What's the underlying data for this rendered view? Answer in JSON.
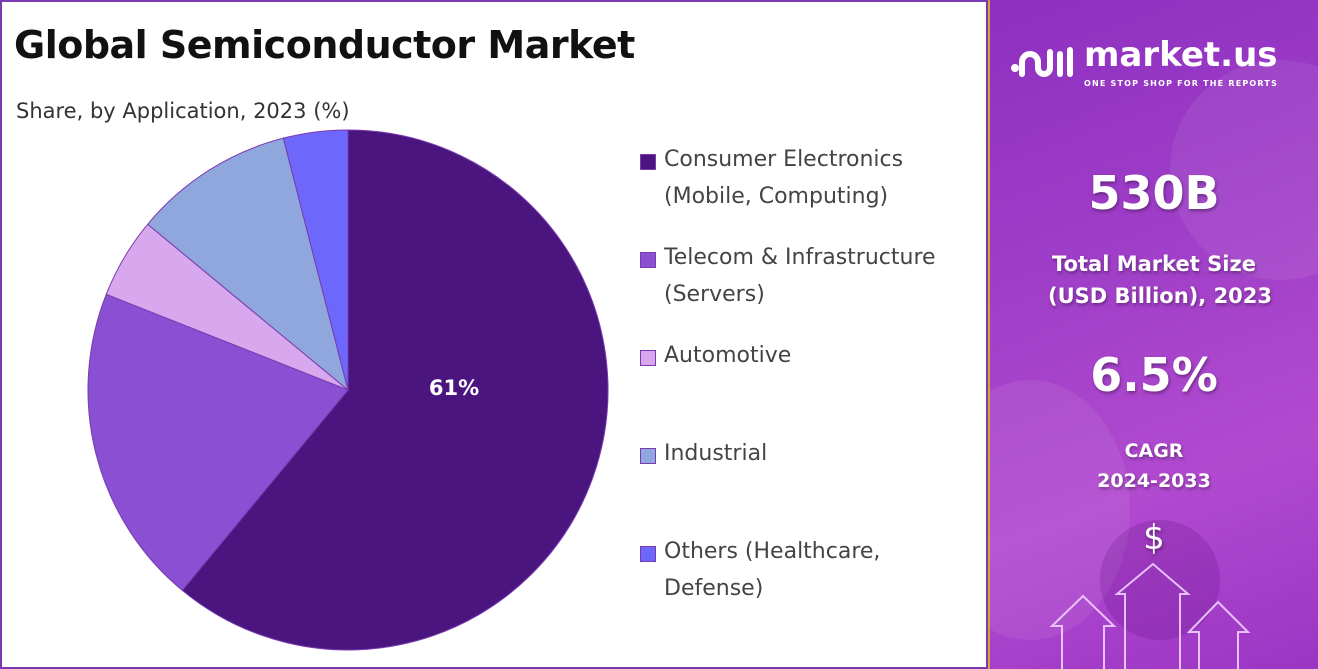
{
  "header": {
    "title": "Global Semiconductor Market",
    "subtitle": "Share, by Application, 2023 (%)"
  },
  "chart_data": {
    "type": "pie",
    "title": "Global Semiconductor Market",
    "subtitle": "Share, by Application, 2023 (%)",
    "start_angle": "12 o'clock, clockwise",
    "legend_position": "right",
    "series": [
      {
        "name": "Consumer Electronics (Mobile, Computing)",
        "line1": "Consumer Electronics",
        "line2": "(Mobile, Computing)",
        "value": 61,
        "label": "61%",
        "color": "#4b1580"
      },
      {
        "name": "Telecom & Infrastructure (Servers)",
        "line1": "Telecom & Infrastructure",
        "line2": "(Servers)",
        "value": 20,
        "label": "",
        "color": "#8a4fd2"
      },
      {
        "name": "Automotive",
        "line1": "Automotive",
        "line2": "",
        "value": 5,
        "label": "",
        "color": "#d7a8ee"
      },
      {
        "name": "Industrial",
        "line1": "Industrial",
        "line2": "",
        "value": 10,
        "label": "",
        "color": "#8fa7dc"
      },
      {
        "name": "Others (Healthcare, Defense)",
        "line1": "Others (Healthcare,",
        "line2": "Defense)",
        "value": 4,
        "label": "",
        "color": "#6d68fb"
      }
    ]
  },
  "sidebar": {
    "brand": "market.us",
    "tagline": "ONE STOP SHOP FOR THE REPORTS",
    "market_size": "530B",
    "market_size_label1": "Total Market Size",
    "market_size_label2": "(USD Billion), 2023",
    "cagr": "6.5%",
    "cagr_label1": "CAGR",
    "cagr_label2": "2024-2033",
    "currency_symbol": "$"
  }
}
